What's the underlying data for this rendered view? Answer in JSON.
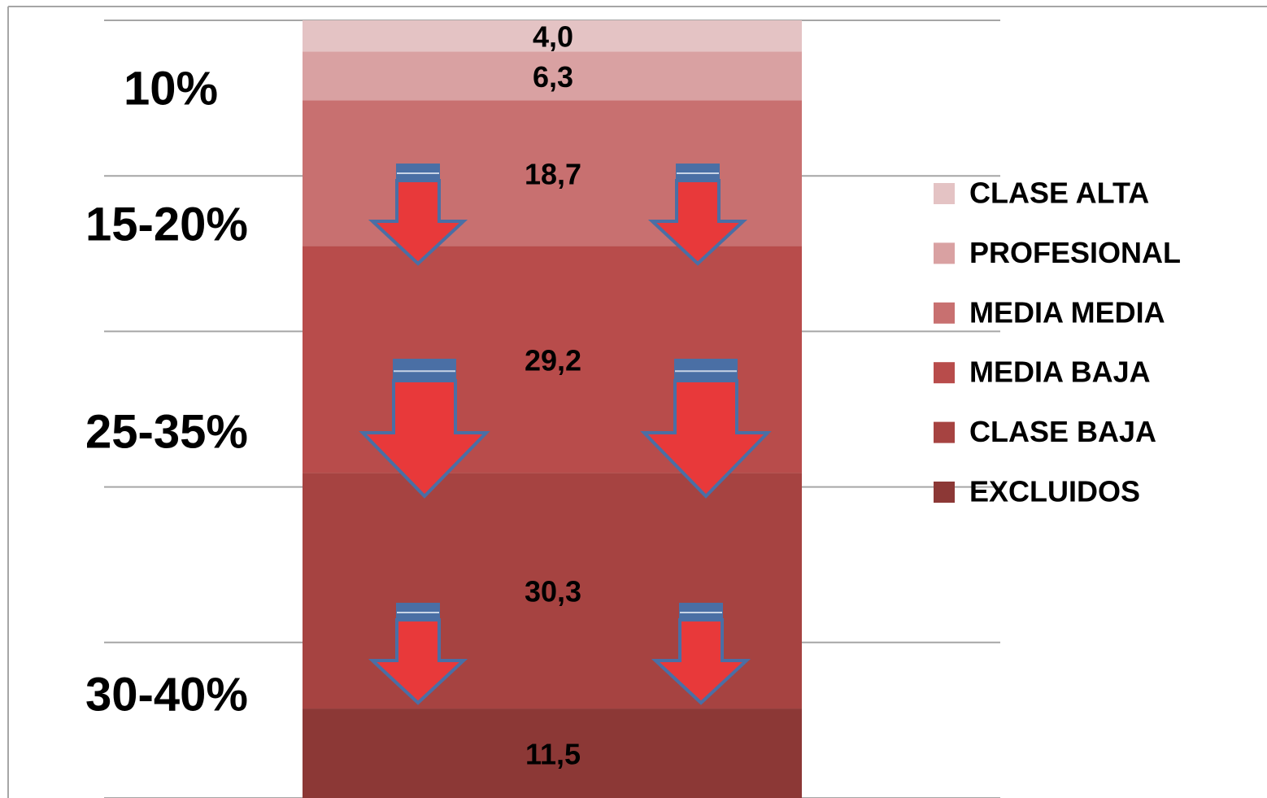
{
  "chart_data": {
    "type": "stacked_bar",
    "categories": [
      null
    ],
    "series": [
      {
        "name": "EXCLUIDOS",
        "color": "#8c3836",
        "values": [
          11.5
        ],
        "value_labels": [
          "11,5"
        ]
      },
      {
        "name": "CLASE BAJA",
        "color": "#a64341",
        "values": [
          30.3
        ],
        "value_labels": [
          "30,3"
        ]
      },
      {
        "name": "MEDIA BAJA",
        "color": "#b84c4b",
        "values": [
          29.2
        ],
        "value_labels": [
          "29,2"
        ]
      },
      {
        "name": "MEDIA MEDIA",
        "color": "#c87070",
        "values": [
          18.7
        ],
        "value_labels": [
          "18,7"
        ]
      },
      {
        "name": "PROFESIONAL",
        "color": "#d9a1a2",
        "values": [
          6.3
        ],
        "value_labels": [
          "6,3"
        ]
      },
      {
        "name": "CLASE ALTA",
        "color": "#e4c3c4",
        "values": [
          4.0
        ],
        "value_labels": [
          "4,0"
        ]
      }
    ],
    "ylim": [
      0,
      100
    ],
    "yticks": [
      0,
      20,
      40,
      60,
      80,
      100
    ],
    "grid": true,
    "legend": "right",
    "annotations": [
      "10%",
      "15-20%",
      "25-35%",
      "30-40%"
    ]
  }
}
